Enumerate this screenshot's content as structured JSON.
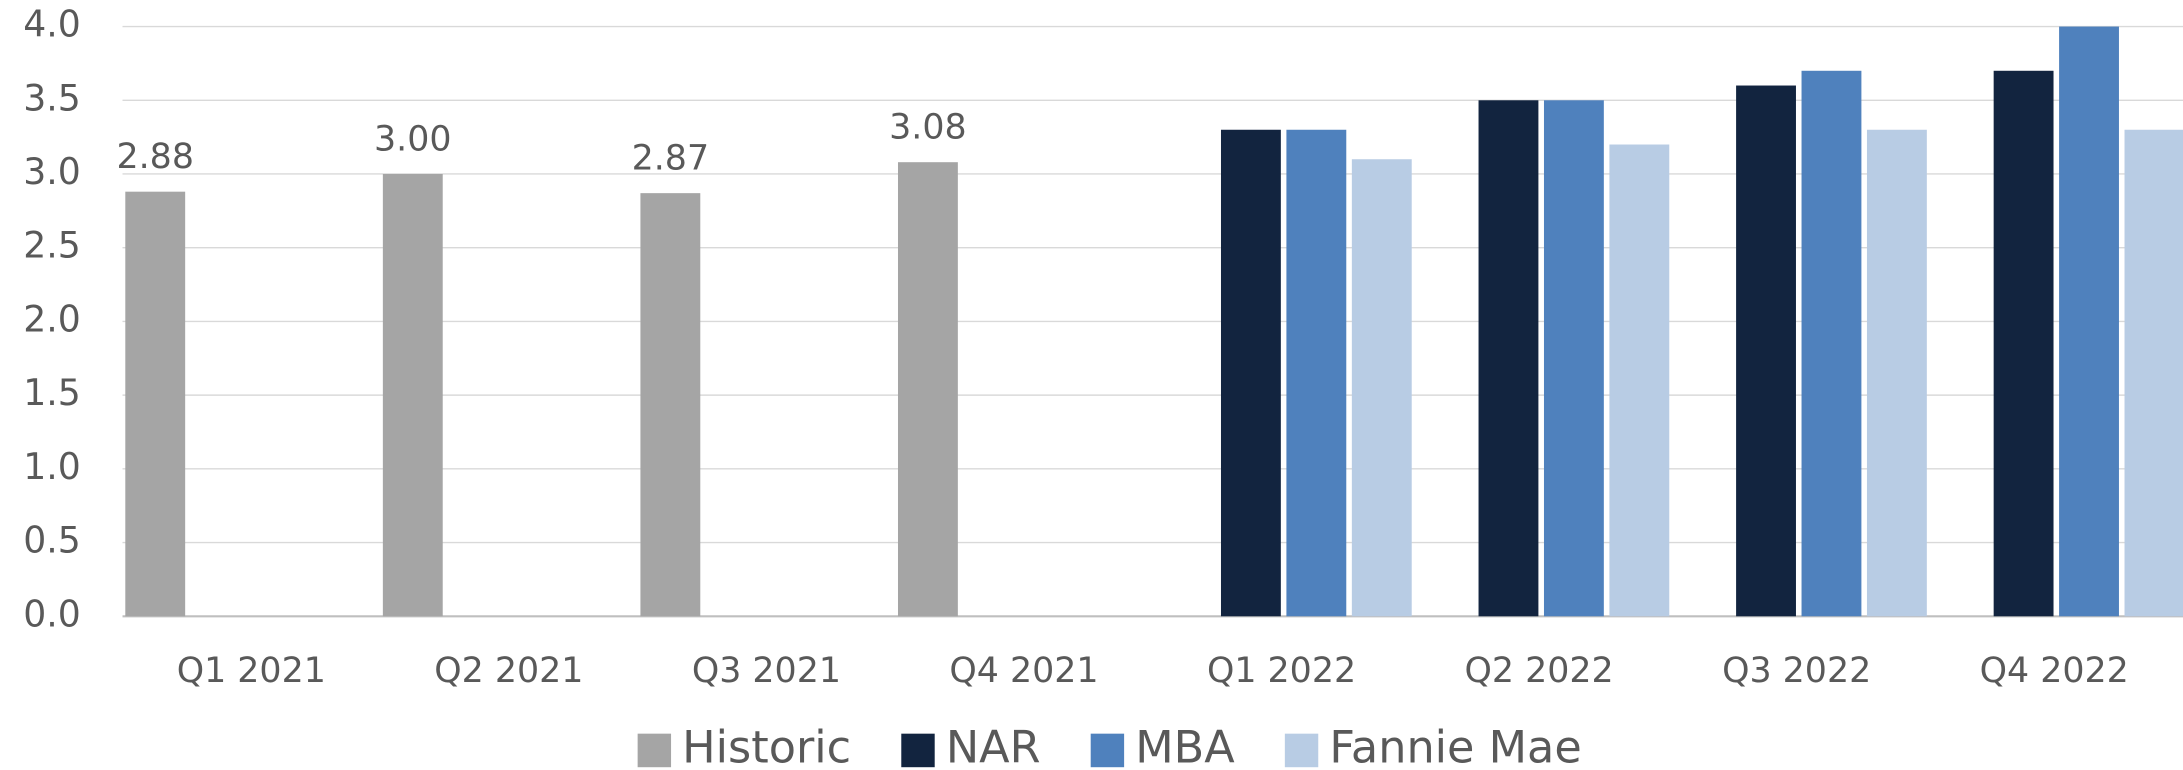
{
  "chart_data": {
    "type": "bar",
    "categories": [
      "Q1 2021",
      "Q2 2021",
      "Q3 2021",
      "Q4 2021",
      "Q1 2022",
      "Q2 2022",
      "Q3 2022",
      "Q4 2022"
    ],
    "series": [
      {
        "name": "Historic",
        "color": "#a5a5a5",
        "values": [
          2.88,
          3.0,
          2.87,
          3.08,
          null,
          null,
          null,
          null
        ],
        "value_labels": [
          "2.88",
          "3.00",
          "2.87",
          "3.08",
          null,
          null,
          null,
          null
        ]
      },
      {
        "name": "NAR",
        "color": "#12243f",
        "values": [
          null,
          null,
          null,
          null,
          3.3,
          3.5,
          3.6,
          3.7
        ]
      },
      {
        "name": "MBA",
        "color": "#4f81bd",
        "values": [
          null,
          null,
          null,
          null,
          3.3,
          3.5,
          3.7,
          4.0
        ]
      },
      {
        "name": "Fannie Mae",
        "color": "#b8cce4",
        "values": [
          null,
          null,
          null,
          null,
          3.1,
          3.2,
          3.3,
          3.3
        ]
      }
    ],
    "ylim": [
      0,
      4
    ],
    "yticks": [
      {
        "value": 0,
        "label": "0.0"
      },
      0.5,
      {
        "value": 1,
        "label": "1.0"
      },
      1.5,
      {
        "value": 2,
        "label": "2.0"
      },
      2.5,
      {
        "value": 3,
        "label": "3.0"
      },
      3.5,
      {
        "value": 4,
        "label": "4.0"
      }
    ],
    "grid": true,
    "legend": "bottom"
  }
}
